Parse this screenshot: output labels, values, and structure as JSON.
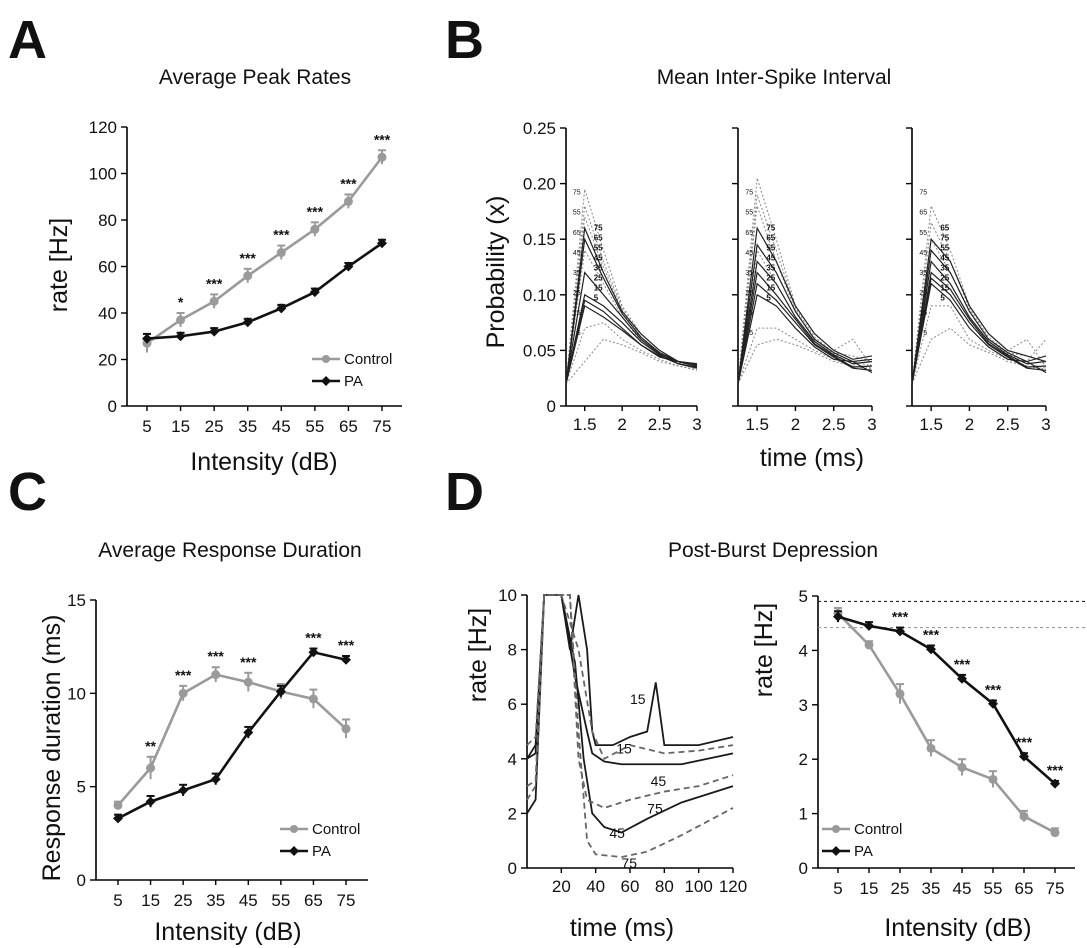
{
  "panels": {
    "a": {
      "letter": "A",
      "title": "Average Peak Rates",
      "xlabel": "Intensity (dB)",
      "ylabel": "rate [Hz]"
    },
    "b": {
      "letter": "B",
      "title": "Mean Inter-Spike Interval",
      "xlabel": "time (ms)",
      "ylabel": "Probability (x)"
    },
    "c": {
      "letter": "C",
      "title": "Average Response Duration",
      "xlabel": "Intensity (dB)",
      "ylabel": "Response duration (ms)"
    },
    "d": {
      "letter": "D",
      "title": "Post-Burst Depression",
      "xlabel_left": "time (ms)",
      "xlabel_right": "Intensity (dB)",
      "ylabel_left": "rate [Hz]",
      "ylabel_right": "rate [Hz]"
    }
  },
  "colors": {
    "control": "#9a9a9a",
    "pa": "#111111",
    "grid_line": "#666666"
  },
  "chart_data": [
    {
      "id": "A",
      "type": "line",
      "x": [
        5,
        15,
        25,
        35,
        45,
        55,
        65,
        75
      ],
      "ylim": [
        0,
        120
      ],
      "yticks": [
        0,
        20,
        40,
        60,
        80,
        100,
        120
      ],
      "xticks": [
        "5",
        "15",
        "25",
        "35",
        "45",
        "55",
        "65",
        "75"
      ],
      "series": [
        {
          "name": "Control",
          "values": [
            27,
            37,
            45,
            56,
            66,
            76,
            88,
            107
          ],
          "err": [
            4,
            3,
            3,
            3,
            3,
            3,
            3,
            3
          ]
        },
        {
          "name": "PA",
          "values": [
            29,
            30,
            32,
            36,
            42,
            49,
            60,
            70
          ],
          "err": [
            2,
            1.5,
            1.5,
            1.5,
            1.5,
            1.5,
            1.5,
            1.5
          ]
        }
      ],
      "significance": [
        "",
        "*",
        "***",
        "***",
        "***",
        "***",
        "***",
        "***"
      ],
      "legend": "bottom-right"
    },
    {
      "id": "B",
      "type": "line",
      "subplots": 3,
      "xlim": [
        1.25,
        3
      ],
      "xticks": [
        "1.5",
        "2",
        "2.5",
        "3"
      ],
      "ylim": [
        0,
        0.25
      ],
      "yticks": [
        "0",
        "0.05",
        "0.10",
        "0.15",
        "0.20",
        "0.25"
      ],
      "x": [
        1.25,
        1.5,
        1.75,
        2,
        2.25,
        2.5,
        2.75,
        3
      ],
      "subplot_data": [
        {
          "labels_left": [
            "75",
            "55",
            "65",
            "45",
            "35",
            "25",
            "15",
            "5"
          ],
          "labels_right": [
            "75",
            "65",
            "55",
            "45",
            "35",
            "25",
            "15",
            "5"
          ],
          "solid": [
            [
              0.02,
              0.16,
              0.12,
              0.085,
              0.065,
              0.05,
              0.04,
              0.038
            ],
            [
              0.02,
              0.15,
              0.115,
              0.083,
              0.062,
              0.048,
              0.04,
              0.036
            ],
            [
              0.02,
              0.12,
              0.1,
              0.08,
              0.06,
              0.047,
              0.038,
              0.035
            ],
            [
              0.02,
              0.1,
              0.09,
              0.075,
              0.058,
              0.046,
              0.04,
              0.036
            ],
            [
              0.02,
              0.095,
              0.085,
              0.07,
              0.055,
              0.045,
              0.038,
              0.034
            ],
            [
              0.02,
              0.09,
              0.08,
              0.068,
              0.055,
              0.044,
              0.04,
              0.037
            ]
          ],
          "dotted": [
            [
              0.02,
              0.195,
              0.14,
              0.09,
              0.065,
              0.05,
              0.04,
              0.035
            ],
            [
              0.02,
              0.18,
              0.13,
              0.088,
              0.062,
              0.048,
              0.04,
              0.036
            ],
            [
              0.02,
              0.17,
              0.125,
              0.086,
              0.06,
              0.047,
              0.039,
              0.035
            ],
            [
              0.02,
              0.14,
              0.11,
              0.08,
              0.058,
              0.046,
              0.038,
              0.034
            ],
            [
              0.02,
              0.07,
              0.075,
              0.06,
              0.05,
              0.042,
              0.036,
              0.033
            ],
            [
              0.02,
              0.04,
              0.06,
              0.055,
              0.048,
              0.04,
              0.036,
              0.032
            ]
          ]
        },
        {
          "labels_left": [
            "75",
            "55",
            "65",
            "45",
            "35",
            "25",
            "15",
            "5"
          ],
          "labels_right": [
            "75",
            "65",
            "55",
            "45",
            "35",
            "25",
            "15",
            "5"
          ],
          "solid": [
            [
              0.02,
              0.16,
              0.13,
              0.09,
              0.065,
              0.05,
              0.042,
              0.045
            ],
            [
              0.02,
              0.145,
              0.12,
              0.085,
              0.06,
              0.048,
              0.04,
              0.042
            ],
            [
              0.02,
              0.13,
              0.11,
              0.08,
              0.058,
              0.046,
              0.038,
              0.04
            ],
            [
              0.02,
              0.12,
              0.1,
              0.078,
              0.056,
              0.045,
              0.035,
              0.036
            ],
            [
              0.02,
              0.11,
              0.095,
              0.075,
              0.055,
              0.044,
              0.034,
              0.032
            ],
            [
              0.02,
              0.1,
              0.09,
              0.07,
              0.053,
              0.042,
              0.04,
              0.03
            ]
          ],
          "dotted": [
            [
              0.02,
              0.205,
              0.15,
              0.09,
              0.065,
              0.05,
              0.06,
              0.035
            ],
            [
              0.02,
              0.19,
              0.14,
              0.088,
              0.062,
              0.048,
              0.045,
              0.04
            ],
            [
              0.02,
              0.18,
              0.13,
              0.086,
              0.06,
              0.047,
              0.04,
              0.036
            ],
            [
              0.02,
              0.14,
              0.11,
              0.08,
              0.058,
              0.046,
              0.038,
              0.034
            ],
            [
              0.02,
              0.07,
              0.07,
              0.06,
              0.05,
              0.042,
              0.036,
              0.033
            ],
            [
              0.02,
              0.055,
              0.06,
              0.055,
              0.048,
              0.04,
              0.036,
              0.032
            ]
          ]
        },
        {
          "labels_left": [
            "75",
            "65",
            "55",
            "45",
            "35",
            "25",
            "15",
            "5"
          ],
          "labels_right": [
            "65",
            "75",
            "55",
            "45",
            "35",
            "25",
            "15",
            "5"
          ],
          "solid": [
            [
              0.02,
              0.15,
              0.13,
              0.09,
              0.065,
              0.05,
              0.045,
              0.04
            ],
            [
              0.02,
              0.14,
              0.12,
              0.085,
              0.06,
              0.048,
              0.04,
              0.045
            ],
            [
              0.02,
              0.13,
              0.11,
              0.08,
              0.058,
              0.046,
              0.038,
              0.04
            ],
            [
              0.02,
              0.12,
              0.105,
              0.078,
              0.056,
              0.045,
              0.035,
              0.036
            ],
            [
              0.02,
              0.115,
              0.1,
              0.075,
              0.055,
              0.044,
              0.034,
              0.032
            ],
            [
              0.02,
              0.11,
              0.095,
              0.07,
              0.053,
              0.042,
              0.04,
              0.03
            ]
          ],
          "dotted": [
            [
              0.02,
              0.18,
              0.14,
              0.09,
              0.065,
              0.05,
              0.06,
              0.035
            ],
            [
              0.02,
              0.165,
              0.13,
              0.088,
              0.062,
              0.048,
              0.045,
              0.04
            ],
            [
              0.02,
              0.15,
              0.12,
              0.086,
              0.06,
              0.047,
              0.04,
              0.06
            ],
            [
              0.02,
              0.13,
              0.11,
              0.08,
              0.058,
              0.046,
              0.038,
              0.034
            ],
            [
              0.02,
              0.09,
              0.09,
              0.06,
              0.05,
              0.042,
              0.036,
              0.033
            ],
            [
              0.02,
              0.06,
              0.07,
              0.055,
              0.048,
              0.04,
              0.036,
              0.032
            ]
          ]
        }
      ]
    },
    {
      "id": "C",
      "type": "line",
      "x": [
        5,
        15,
        25,
        35,
        45,
        55,
        65,
        75
      ],
      "ylim": [
        0,
        15
      ],
      "yticks": [
        0,
        5,
        10,
        15
      ],
      "xticks": [
        "5",
        "15",
        "25",
        "35",
        "45",
        "55",
        "65",
        "75"
      ],
      "series": [
        {
          "name": "Control",
          "values": [
            4,
            6,
            10,
            11,
            10.6,
            10.1,
            9.7,
            8.1
          ],
          "err": [
            0.2,
            0.6,
            0.4,
            0.4,
            0.5,
            0.4,
            0.5,
            0.5
          ]
        },
        {
          "name": "PA",
          "values": [
            3.3,
            4.2,
            4.8,
            5.4,
            7.9,
            10.1,
            12.2,
            11.8
          ],
          "err": [
            0.2,
            0.3,
            0.3,
            0.3,
            0.3,
            0.3,
            0.2,
            0.2
          ]
        }
      ],
      "significance": [
        "",
        "**",
        "***",
        "***",
        "***",
        "",
        "***",
        "***"
      ],
      "legend": "bottom-right"
    },
    {
      "id": "D-left",
      "type": "line",
      "xlim": [
        0,
        120
      ],
      "xticks": [
        "20",
        "40",
        "60",
        "80",
        "100",
        "120"
      ],
      "ylim": [
        0,
        10
      ],
      "yticks": [
        0,
        2,
        4,
        6,
        8,
        10
      ],
      "curves": [
        {
          "label": "15",
          "style": "solid",
          "points": [
            [
              0,
              4
            ],
            [
              5,
              4.5
            ],
            [
              10,
              10
            ],
            [
              20,
              10
            ],
            [
              25,
              8
            ],
            [
              30,
              10
            ],
            [
              35,
              8
            ],
            [
              38,
              5
            ],
            [
              40,
              4.5
            ],
            [
              50,
              4.5
            ],
            [
              60,
              4.8
            ],
            [
              70,
              5
            ],
            [
              75,
              6.8
            ],
            [
              80,
              4.5
            ],
            [
              100,
              4.5
            ],
            [
              120,
              4.8
            ]
          ]
        },
        {
          "label": "15",
          "style": "solid",
          "points": [
            [
              0,
              4
            ],
            [
              5,
              4.2
            ],
            [
              10,
              10
            ],
            [
              20,
              10
            ],
            [
              28,
              7
            ],
            [
              35,
              5
            ],
            [
              38,
              4.2
            ],
            [
              45,
              3.9
            ],
            [
              55,
              3.8
            ],
            [
              70,
              3.8
            ],
            [
              90,
              3.8
            ],
            [
              120,
              4.2
            ]
          ]
        },
        {
          "label": "45",
          "style": "solid",
          "points": [
            [
              0,
              2
            ],
            [
              5,
              2.5
            ],
            [
              10,
              10
            ],
            [
              20,
              10
            ],
            [
              28,
              7.5
            ],
            [
              33,
              4
            ],
            [
              38,
              2
            ],
            [
              45,
              1.5
            ],
            [
              55,
              1.3
            ],
            [
              70,
              1.8
            ],
            [
              90,
              2.4
            ],
            [
              120,
              3
            ]
          ]
        },
        {
          "label": "45",
          "style": "dashed",
          "points": [
            [
              0,
              4.5
            ],
            [
              5,
              4.8
            ],
            [
              10,
              10
            ],
            [
              20,
              10
            ],
            [
              30,
              8
            ],
            [
              38,
              5
            ],
            [
              45,
              4
            ],
            [
              60,
              4.5
            ],
            [
              80,
              4.2
            ],
            [
              100,
              4.3
            ],
            [
              120,
              4.5
            ]
          ]
        },
        {
          "label": "75",
          "style": "dashed",
          "points": [
            [
              0,
              3
            ],
            [
              5,
              3.2
            ],
            [
              10,
              10
            ],
            [
              25,
              10
            ],
            [
              30,
              5
            ],
            [
              35,
              1
            ],
            [
              40,
              0.5
            ],
            [
              55,
              0.4
            ],
            [
              70,
              0.6
            ],
            [
              90,
              1.2
            ],
            [
              120,
              2.2
            ]
          ]
        },
        {
          "label": "75",
          "style": "dashed",
          "points": [
            [
              0,
              2.5
            ],
            [
              5,
              3
            ],
            [
              10,
              10
            ],
            [
              25,
              10
            ],
            [
              30,
              4
            ],
            [
              35,
              2.5
            ],
            [
              45,
              2.2
            ],
            [
              60,
              2.5
            ],
            [
              80,
              2.8
            ],
            [
              100,
              3
            ],
            [
              120,
              3.4
            ]
          ]
        }
      ],
      "curve_labels": [
        "15",
        "15",
        "45",
        "45",
        "75",
        "75"
      ]
    },
    {
      "id": "D-right",
      "type": "line",
      "x": [
        5,
        15,
        25,
        35,
        45,
        55,
        65,
        75
      ],
      "ylim": [
        0,
        5
      ],
      "yticks": [
        0,
        1,
        2,
        3,
        4,
        5
      ],
      "xticks": [
        "5",
        "15",
        "25",
        "35",
        "45",
        "55",
        "65",
        "75"
      ],
      "series": [
        {
          "name": "Control",
          "values": [
            4.68,
            4.1,
            3.2,
            2.2,
            1.85,
            1.63,
            0.95,
            0.65
          ],
          "err": [
            0.1,
            0.07,
            0.18,
            0.15,
            0.15,
            0.15,
            0.1,
            0.08
          ]
        },
        {
          "name": "PA",
          "values": [
            4.62,
            4.45,
            4.35,
            4.02,
            3.48,
            3.02,
            2.05,
            1.55
          ],
          "err": [
            0.1,
            0.07,
            0.07,
            0.07,
            0.07,
            0.06,
            0.06,
            0.05
          ]
        }
      ],
      "significance": [
        "",
        "",
        "***",
        "***",
        "***",
        "***",
        "***",
        "***"
      ],
      "reference_lines": [
        4.9,
        4.42
      ],
      "legend": "bottom-left"
    }
  ]
}
